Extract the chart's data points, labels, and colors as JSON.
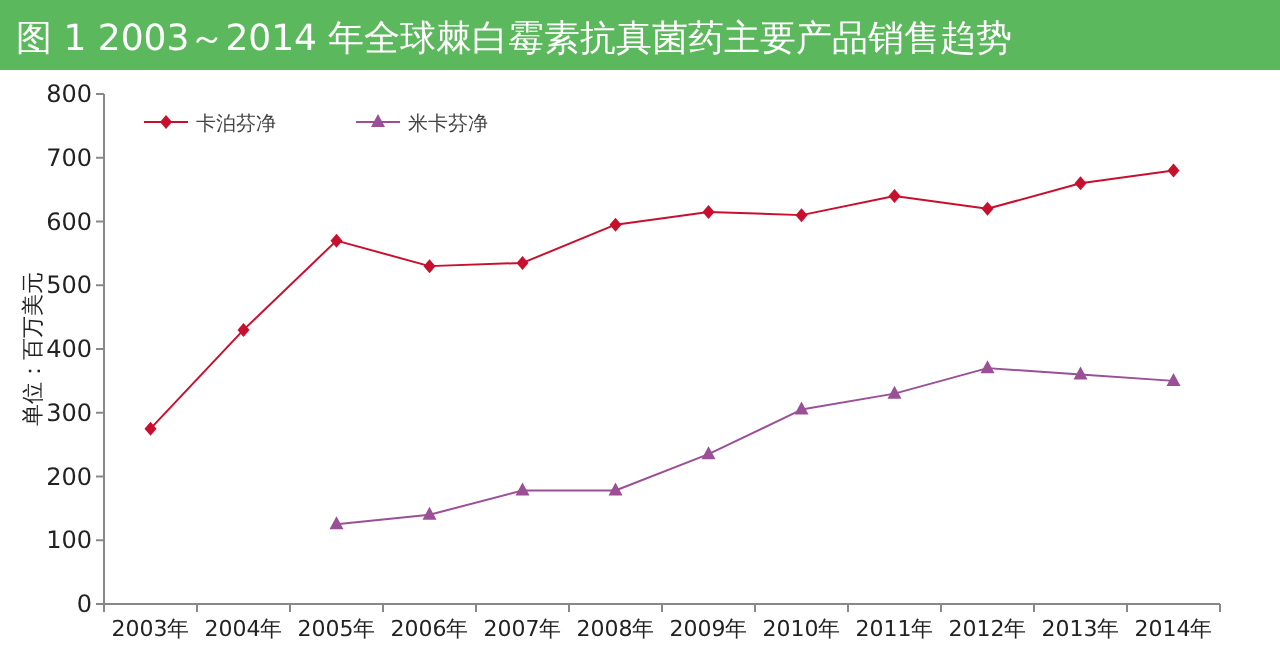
{
  "chart_data": {
    "type": "line",
    "title": "图 1  2003～2014 年全球棘白霉素抗真菌药主要产品销售趋势",
    "ylabel": "单位：百万美元",
    "categories": [
      "2003年",
      "2004年",
      "2005年",
      "2006年",
      "2007年",
      "2008年",
      "2009年",
      "2010年",
      "2011年",
      "2012年",
      "2013年",
      "2014年"
    ],
    "series": [
      {
        "name": "卡泊芬净",
        "color": "#c8102e",
        "marker": "diamond",
        "values": [
          275,
          430,
          570,
          530,
          535,
          595,
          615,
          610,
          640,
          620,
          660,
          680
        ]
      },
      {
        "name": "米卡芬净",
        "color": "#9b4f96",
        "marker": "triangle",
        "values": [
          null,
          null,
          125,
          140,
          178,
          178,
          235,
          305,
          330,
          370,
          360,
          350
        ]
      }
    ],
    "ylim": [
      0,
      800
    ],
    "yticks": [
      0,
      100,
      200,
      300,
      400,
      500,
      600,
      700,
      800
    ],
    "legend": "top left",
    "grid": false
  }
}
